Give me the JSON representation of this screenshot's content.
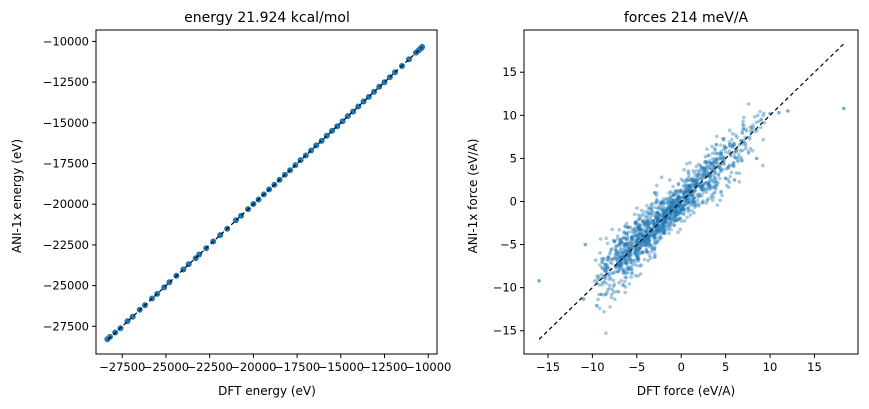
{
  "chart_data": [
    {
      "type": "scatter",
      "title": "energy  21.924 kcal/mol",
      "xlabel": "DFT energy (eV)",
      "ylabel": "ANI-1x energy (eV)",
      "xlim": [
        -29000,
        -9500
      ],
      "ylim": [
        -29200,
        -9300
      ],
      "xticks": [
        -27500,
        -25000,
        -22500,
        -20000,
        -17500,
        -15000,
        -12500,
        -10000
      ],
      "xtick_labels": [
        "−27500",
        "−25000",
        "−22500",
        "−20000",
        "−17500",
        "−15000",
        "−12500",
        "−10000"
      ],
      "yticks": [
        -27500,
        -25000,
        -22500,
        -20000,
        -17500,
        -15000,
        -12500,
        -10000
      ],
      "ytick_labels": [
        "−27500",
        "−25000",
        "−22500",
        "−20000",
        "−17500",
        "−15000",
        "−12500",
        "−10000"
      ],
      "reference_line": [
        [
          -28300,
          -28300
        ],
        [
          -10350,
          -10350
        ]
      ],
      "grid": false,
      "point_color": "#1f77b4",
      "points": [
        [
          -28350,
          -28300
        ],
        [
          -28200,
          -28150
        ],
        [
          -27900,
          -27880
        ],
        [
          -27600,
          -27620
        ],
        [
          -27200,
          -27180
        ],
        [
          -26900,
          -26910
        ],
        [
          -26500,
          -26480
        ],
        [
          -26200,
          -26210
        ],
        [
          -25800,
          -25790
        ],
        [
          -25500,
          -25510
        ],
        [
          -25100,
          -25110
        ],
        [
          -24800,
          -24790
        ],
        [
          -24400,
          -24390
        ],
        [
          -24000,
          -24010
        ],
        [
          -23700,
          -23690
        ],
        [
          -23300,
          -23320
        ],
        [
          -23100,
          -23090
        ],
        [
          -22700,
          -22710
        ],
        [
          -22300,
          -22290
        ],
        [
          -21900,
          -21900
        ],
        [
          -21500,
          -21510
        ],
        [
          -21000,
          -20990
        ],
        [
          -20700,
          -20710
        ],
        [
          -20300,
          -20300
        ],
        [
          -20000,
          -19990
        ],
        [
          -19700,
          -19710
        ],
        [
          -19400,
          -19400
        ],
        [
          -19100,
          -19090
        ],
        [
          -18800,
          -18810
        ],
        [
          -18500,
          -18500
        ],
        [
          -18200,
          -18190
        ],
        [
          -17900,
          -17910
        ],
        [
          -17600,
          -17600
        ],
        [
          -17300,
          -17290
        ],
        [
          -17000,
          -17010
        ],
        [
          -16700,
          -16700
        ],
        [
          -16400,
          -16390
        ],
        [
          -16100,
          -16110
        ],
        [
          -15800,
          -15800
        ],
        [
          -15500,
          -15490
        ],
        [
          -15200,
          -15210
        ],
        [
          -14900,
          -14900
        ],
        [
          -14600,
          -14590
        ],
        [
          -14300,
          -14310
        ],
        [
          -14000,
          -14000
        ],
        [
          -13700,
          -13690
        ],
        [
          -13400,
          -13410
        ],
        [
          -13100,
          -13100
        ],
        [
          -12800,
          -12790
        ],
        [
          -12500,
          -12510
        ],
        [
          -12200,
          -12200
        ],
        [
          -11900,
          -11890
        ],
        [
          -11500,
          -11510
        ],
        [
          -11100,
          -11100
        ],
        [
          -10700,
          -10690
        ],
        [
          -10550,
          -10560
        ],
        [
          -10450,
          -10440
        ],
        [
          -10400,
          -10420
        ],
        [
          -10350,
          -10340
        ]
      ]
    },
    {
      "type": "scatter",
      "title": "forces  214 meV/A",
      "xlabel": "DFT force (eV/A)",
      "ylabel": "ANI-1x force (eV/A)",
      "xlim": [
        -17.7,
        19.9
      ],
      "ylim": [
        -17.7,
        19.9
      ],
      "xticks": [
        -15,
        -10,
        -5,
        0,
        5,
        10,
        15
      ],
      "xtick_labels": [
        "−15",
        "−10",
        "−5",
        "0",
        "5",
        "10",
        "15"
      ],
      "yticks": [
        -15,
        -10,
        -5,
        0,
        5,
        10,
        15
      ],
      "ytick_labels": [
        "−15",
        "−10",
        "−5",
        "0",
        "5",
        "10",
        "15"
      ],
      "reference_line": [
        [
          -16.0,
          -16.0
        ],
        [
          18.3,
          18.3
        ]
      ],
      "grid": false,
      "point_color": "#1f77b4",
      "point_opacity": 0.4,
      "spread": 1.1,
      "core_range": [
        -8,
        9
      ],
      "outliers": [
        [
          -16.0,
          -9.2
        ],
        [
          18.3,
          10.8
        ],
        [
          -10.8,
          -5.0
        ],
        [
          -11.0,
          -11.3
        ],
        [
          -9.5,
          -12.1
        ],
        [
          -9.0,
          -10.8
        ],
        [
          -8.2,
          -6.5
        ],
        [
          -7.5,
          -4.6
        ],
        [
          -6.0,
          -3.0
        ],
        [
          10.0,
          10.2
        ],
        [
          11.0,
          10.3
        ],
        [
          9.0,
          9.5
        ],
        [
          8.5,
          5.0
        ],
        [
          -3.0,
          1.0
        ],
        [
          6.0,
          2.5
        ],
        [
          12.0,
          10.5
        ]
      ]
    }
  ]
}
